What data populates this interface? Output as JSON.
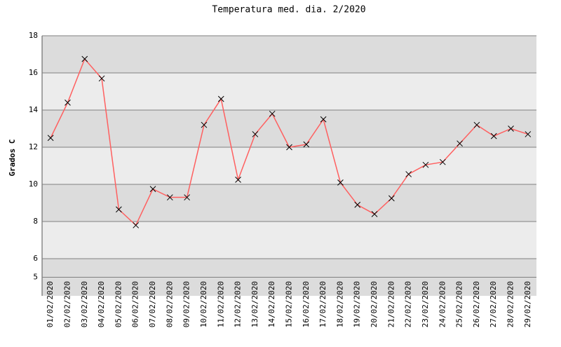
{
  "chart_data": {
    "type": "line",
    "title": "Temperatura med. dia. 2/2020",
    "y_label": "Grados C",
    "categories": [
      "01/02/2020",
      "02/02/2020",
      "03/02/2020",
      "04/02/2020",
      "05/02/2020",
      "06/02/2020",
      "07/02/2020",
      "08/02/2020",
      "09/02/2020",
      "10/02/2020",
      "11/02/2020",
      "12/02/2020",
      "13/02/2020",
      "14/02/2020",
      "15/02/2020",
      "16/02/2020",
      "17/02/2020",
      "18/02/2020",
      "19/02/2020",
      "20/02/2020",
      "21/02/2020",
      "22/02/2020",
      "23/02/2020",
      "24/02/2020",
      "25/02/2020",
      "26/02/2020",
      "27/02/2020",
      "28/02/2020",
      "29/02/2020"
    ],
    "values": [
      12.5,
      14.4,
      16.75,
      15.7,
      8.65,
      7.8,
      9.75,
      9.3,
      9.3,
      13.2,
      14.6,
      10.25,
      12.7,
      13.8,
      12.0,
      12.15,
      13.5,
      10.1,
      8.9,
      8.4,
      9.25,
      10.55,
      11.05,
      11.2,
      12.2,
      13.2,
      12.6,
      13.0,
      12.7
    ],
    "color": "#ff6060",
    "marker_color": "#000000",
    "ylim": [
      4,
      18
    ],
    "yticks": [
      5,
      6,
      8,
      10,
      12,
      14,
      16,
      18
    ],
    "grid": true
  }
}
